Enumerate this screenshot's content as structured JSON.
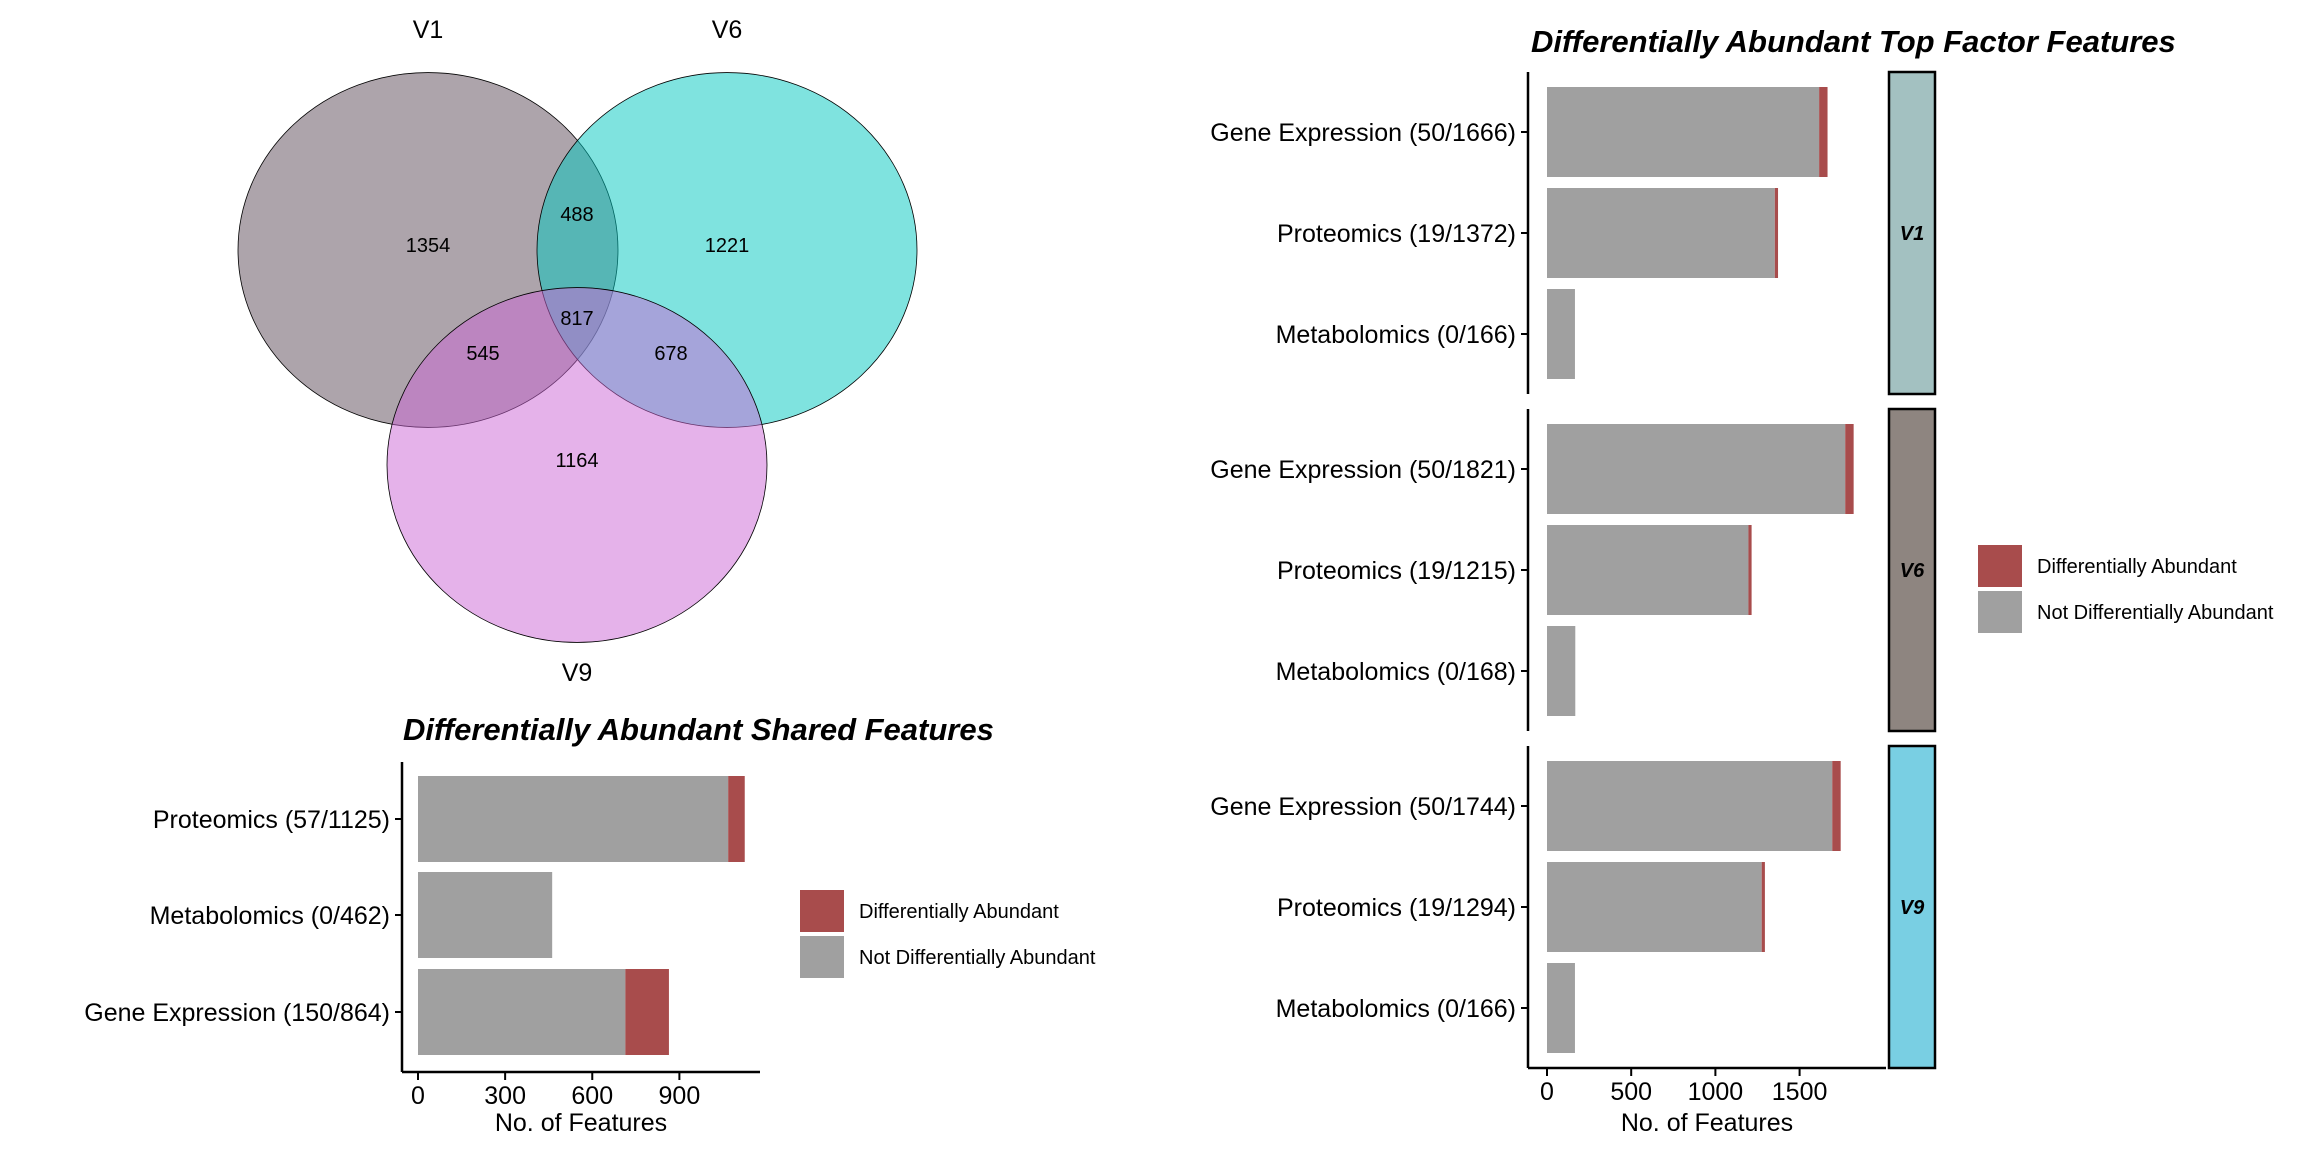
{
  "colors": {
    "diff": "#A84C4C",
    "notdiff": "#A0A0A0",
    "axis": "#000000"
  },
  "chart_data": [
    {
      "type": "venn",
      "sets": [
        {
          "name": "V1",
          "color": "#5C4A58"
        },
        {
          "name": "V6",
          "color": "#00C8C0"
        },
        {
          "name": "V9",
          "color": "#CC66D6"
        }
      ],
      "regions": [
        {
          "sets": [
            "V1"
          ],
          "value": "1354"
        },
        {
          "sets": [
            "V6"
          ],
          "value": "1221"
        },
        {
          "sets": [
            "V9"
          ],
          "value": "1164"
        },
        {
          "sets": [
            "V1",
            "V6"
          ],
          "value": "488"
        },
        {
          "sets": [
            "V1",
            "V9"
          ],
          "value": "545"
        },
        {
          "sets": [
            "V6",
            "V9"
          ],
          "value": "678"
        },
        {
          "sets": [
            "V1",
            "V6",
            "V9"
          ],
          "value": "817"
        }
      ]
    },
    {
      "type": "bar",
      "orientation": "horizontal",
      "stacked": true,
      "title": "Differentially Abundant Shared Features",
      "xlabel": "No. of Features",
      "xlim": [
        0,
        1150
      ],
      "xticks": [
        0,
        300,
        600,
        900
      ],
      "xtick_labels": [
        "0",
        "300",
        "600",
        "900"
      ],
      "categories": [
        "Proteomics (57/1125)",
        "Metabolomics (0/462)",
        "Gene Expression (150/864)"
      ],
      "series": [
        {
          "name": "Not Differentially Abundant",
          "values": [
            1068,
            462,
            714
          ]
        },
        {
          "name": "Differentially Abundant",
          "values": [
            57,
            0,
            150
          ]
        }
      ],
      "legend": {
        "position": "right",
        "items": [
          "Differentially Abundant",
          "Not Differentially Abundant"
        ]
      }
    },
    {
      "type": "bar",
      "orientation": "horizontal",
      "stacked": true,
      "title": "Differentially Abundant Top Factor Features",
      "xlabel": "No. of Features",
      "xlim": [
        0,
        1930
      ],
      "xticks": [
        0,
        500,
        1000,
        1500
      ],
      "xtick_labels": [
        "0",
        "500",
        "1000",
        "1500"
      ],
      "facets": [
        {
          "label": "V1",
          "color": "#A3C1C1",
          "categories": [
            "Gene Expression (50/1666)",
            "Proteomics (19/1372)",
            "Metabolomics (0/166)"
          ],
          "not_diff": [
            1616,
            1353,
            166
          ],
          "diff": [
            50,
            19,
            0
          ]
        },
        {
          "label": "V6",
          "color": "#8E8580",
          "categories": [
            "Gene Expression (50/1821)",
            "Proteomics (19/1215)",
            "Metabolomics (0/168)"
          ],
          "not_diff": [
            1771,
            1196,
            168
          ],
          "diff": [
            50,
            19,
            0
          ]
        },
        {
          "label": "V9",
          "color": "#79CFE3",
          "categories": [
            "Gene Expression (50/1744)",
            "Proteomics (19/1294)",
            "Metabolomics (0/166)"
          ],
          "not_diff": [
            1694,
            1275,
            166
          ],
          "diff": [
            50,
            19,
            0
          ]
        }
      ],
      "legend": {
        "position": "right",
        "items": [
          "Differentially Abundant",
          "Not Differentially Abundant"
        ]
      }
    }
  ]
}
